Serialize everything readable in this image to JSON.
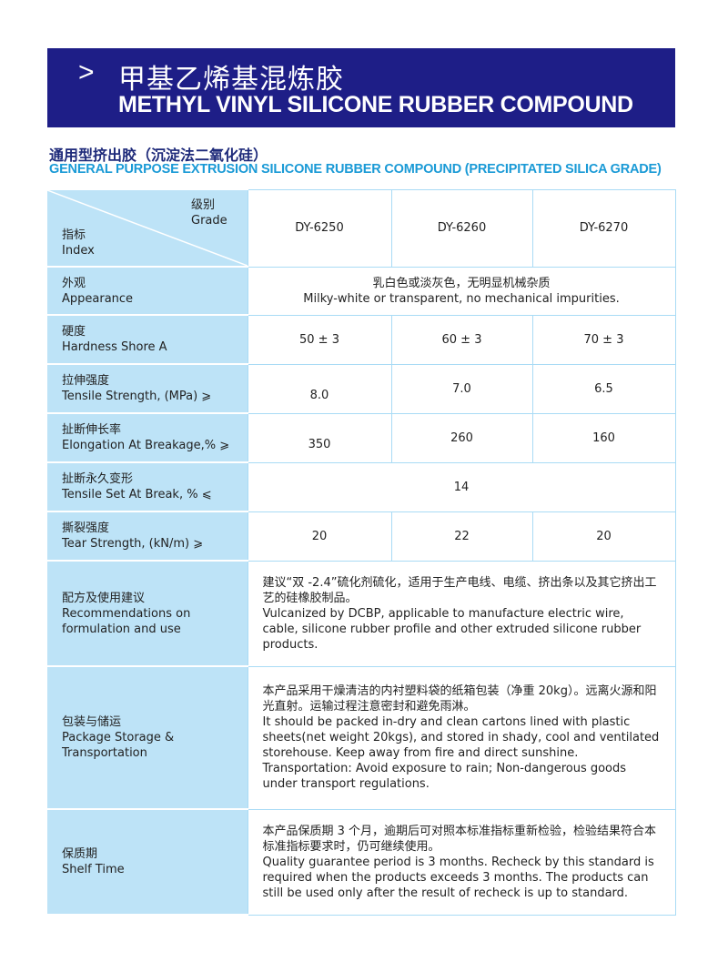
{
  "banner": {
    "chevron": ">",
    "title_cn": "甲基乙烯基混炼胶",
    "title_en": "METHYL VINYL SILICONE RUBBER COMPOUND"
  },
  "subtitle": {
    "cn": "通用型挤出胶（沉淀法二氧化硅）",
    "en": "GENERAL PURPOSE EXTRUSION SILICONE RUBBER COMPOUND (PRECIPITATED SILICA GRADE)"
  },
  "colors": {
    "banner": "#1e1e87",
    "subtitle_cn": "#1e2a7a",
    "subtitle_en": "#1a9ad6",
    "label_bg": "#bde3f7",
    "border": "#a9dbf5"
  },
  "table": {
    "header": {
      "grade_cn": "级别",
      "grade_en": "Grade",
      "index_cn": "指标",
      "index_en": "Index",
      "grades": [
        "DY-6250",
        "DY-6260",
        "DY-6270"
      ]
    },
    "rows": [
      {
        "cn": "外观",
        "en": "Appearance",
        "merged": "乳白色或淡灰色，无明显机械杂质",
        "merged2": "Milky-white or transparent, no mechanical impurities."
      },
      {
        "cn": "硬度",
        "en": "Hardness  Shore A",
        "values": [
          "50 ± 3",
          "60 ± 3",
          "70 ± 3"
        ]
      },
      {
        "cn": "拉伸强度",
        "en": "Tensile Strength, (MPa) ⩾",
        "values": [
          "8.0",
          "7.0",
          "6.5"
        ]
      },
      {
        "cn": "扯断伸长率",
        "en": "Elongation At Breakage,% ⩾",
        "values": [
          "350",
          "260",
          "160"
        ]
      },
      {
        "cn": "扯断永久变形",
        "en": "Tensile Set At Break, % ⩽",
        "merged": "14"
      },
      {
        "cn": "撕裂强度",
        "en": "Tear Strength, (kN/m) ⩾",
        "values": [
          "20",
          "22",
          "20"
        ]
      },
      {
        "cn": "配方及使用建议",
        "en": "Recommendations on formulation and use",
        "text": [
          "建议“双 -2.4”硫化剂硫化，适用于生产电线、电缆、挤出条以及其它挤出工艺的硅橡胶制品。",
          "Vulcanized by DCBP, applicable to manufacture electric wire, cable, silicone rubber profile  and other extruded silicone rubber products."
        ]
      },
      {
        "cn": "包装与储运",
        "en": "Package Storage & Transportation",
        "text": [
          "本产品采用干燥清洁的内衬塑料袋的纸箱包装（净重 20kg）。远离火源和阳光直射。运输过程注意密封和避免雨淋。",
          "It should be packed in-dry and clean cartons lined with plastic sheets(net weight 20kgs), and stored in shady, cool and ventilated storehouse. Keep away from fire and direct sunshine.",
          "Transportation: Avoid exposure to rain; Non-dangerous goods under transport regulations."
        ]
      },
      {
        "cn": "保质期",
        "en": "Shelf Time",
        "text": [
          "本产品保质期 3 个月，逾期后可对照本标准指标重新检验，检验结果符合本标准指标要求时，仍可继续使用。",
          "Quality guarantee period is 3 months. Recheck by this standard is required when the products exceeds 3 months. The products can still be used only after the result of recheck is up to standard."
        ]
      }
    ]
  }
}
